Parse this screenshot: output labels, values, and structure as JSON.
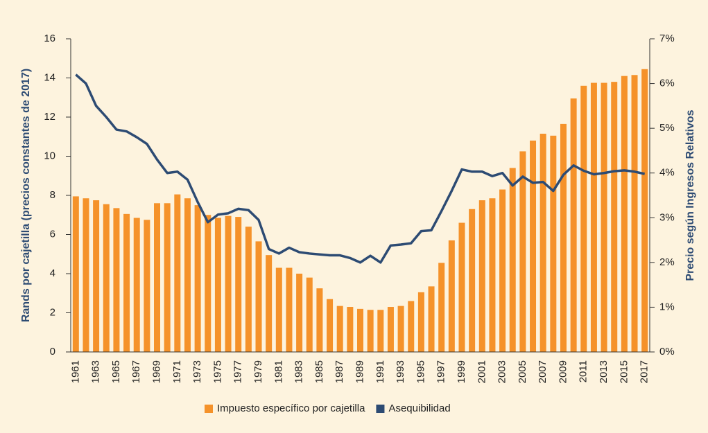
{
  "chart_data": {
    "type": "bar_line",
    "y_label": "Rands por cajetilla (precios constantes de 2017)",
    "y2_label": "Precio según Ingresos Relativos",
    "categories": [
      "1961",
      null,
      "1963",
      null,
      "1965",
      null,
      "1967",
      null,
      "1969",
      null,
      "1971",
      null,
      "1973",
      null,
      "1975",
      null,
      "1977",
      null,
      "1979",
      null,
      "1981",
      null,
      "1983",
      null,
      "1985",
      null,
      "1987",
      null,
      "1989",
      null,
      "1991",
      null,
      "1993",
      null,
      "1995",
      null,
      "1997",
      null,
      "1999",
      null,
      "2001",
      null,
      "2003",
      null,
      "2005",
      null,
      "2007",
      null,
      "2009",
      null,
      "2011",
      null,
      "2013",
      null,
      "2015",
      null,
      "2017"
    ],
    "series": [
      {
        "name": "Impuesto específico por cajetilla",
        "color": "#f5922a",
        "type": "bar",
        "values": [
          7.95,
          7.85,
          7.75,
          7.55,
          7.35,
          7.05,
          6.85,
          6.75,
          7.6,
          7.6,
          8.05,
          7.85,
          7.5,
          7.0,
          6.85,
          6.95,
          6.9,
          6.4,
          5.65,
          4.95,
          4.3,
          4.3,
          4.0,
          3.8,
          3.25,
          2.7,
          2.35,
          2.3,
          2.2,
          2.15,
          2.15,
          2.3,
          2.35,
          2.6,
          3.05,
          3.35,
          4.55,
          5.7,
          6.6,
          7.3,
          7.75,
          7.85,
          8.3,
          9.4,
          10.25,
          10.8,
          11.15,
          11.05,
          11.65,
          12.95,
          13.6,
          13.75,
          13.75,
          13.8,
          14.1,
          14.15,
          14.45
        ]
      },
      {
        "name": "Asequibilidad",
        "color": "#2d4b73",
        "type": "line",
        "axis": "y2",
        "values": [
          6.2,
          6.0,
          5.5,
          5.25,
          4.97,
          4.93,
          4.8,
          4.65,
          4.3,
          4.0,
          4.03,
          3.85,
          3.35,
          2.9,
          3.07,
          3.1,
          3.2,
          3.17,
          2.95,
          2.3,
          2.2,
          2.33,
          2.23,
          2.2,
          2.18,
          2.16,
          2.16,
          2.1,
          2.0,
          2.15,
          2.0,
          2.38,
          2.4,
          2.43,
          2.7,
          2.72,
          3.15,
          3.6,
          4.08,
          4.03,
          4.03,
          3.93,
          4.0,
          3.72,
          3.92,
          3.78,
          3.8,
          3.6,
          3.96,
          4.17,
          4.05,
          3.97,
          4.0,
          4.04,
          4.06,
          4.03,
          3.98
        ]
      }
    ],
    "ylim": [
      0,
      16
    ],
    "yticks": [
      0,
      2,
      4,
      6,
      8,
      10,
      12,
      14,
      16
    ],
    "y2lim": [
      0,
      7
    ],
    "y2ticks": [
      {
        "value": 0,
        "label": "0%"
      },
      {
        "value": 1,
        "label": "1%"
      },
      {
        "value": 2,
        "label": "2%"
      },
      {
        "value": 3,
        "label": "3%"
      },
      {
        "value": 4,
        "label": "4%"
      },
      {
        "value": 5,
        "label": "5%"
      },
      {
        "value": 6,
        "label": "6%"
      },
      {
        "value": 7,
        "label": "7%"
      }
    ],
    "legend": "bottom"
  }
}
